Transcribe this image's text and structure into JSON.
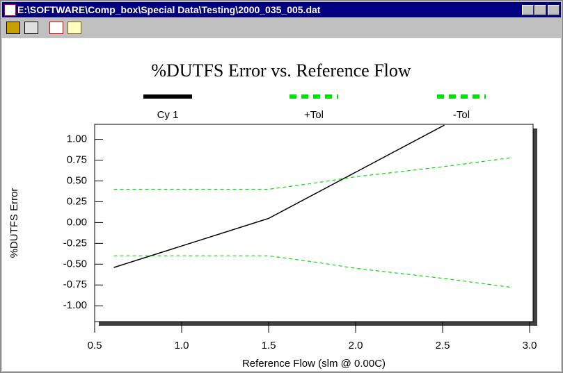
{
  "window": {
    "title": "E:\\SOFTWARE\\Comp_box\\Special Data\\Testing\\2000_035_005.dat"
  },
  "chart_data": {
    "type": "line",
    "title": "%DUTFS Error vs. Reference Flow",
    "x_label": "Reference Flow (slm @ 0.00C)",
    "y_label": "%DUTFS Error",
    "xlim": [
      0.5,
      3.02
    ],
    "ylim": [
      -1.19,
      1.18
    ],
    "xticks": [
      {
        "value": 0.5,
        "label": "0.5"
      },
      {
        "value": 1,
        "label": "1.0"
      },
      {
        "value": 1.5,
        "label": "1.5"
      },
      {
        "value": 2,
        "label": "2.0"
      },
      {
        "value": 2.5,
        "label": "2.5"
      },
      {
        "value": 3,
        "label": "3.0"
      }
    ],
    "yticks": [
      {
        "value": 1,
        "label": "1.00"
      },
      {
        "value": 0.75,
        "label": "0.75"
      },
      {
        "value": 0.5,
        "label": "0.50"
      },
      {
        "value": 0.25,
        "label": "0.25"
      },
      {
        "value": 0,
        "label": "0.00"
      },
      {
        "value": -0.25,
        "label": "-0.25"
      },
      {
        "value": -0.5,
        "label": "-0.50"
      },
      {
        "value": -0.75,
        "label": "-0.75"
      },
      {
        "value": -1,
        "label": "-1.00"
      }
    ],
    "grid": false,
    "series": [
      {
        "name": "Cy 1",
        "color": "#000000",
        "dash": "solid",
        "x": [
          0.61,
          1.5,
          2.51
        ],
        "values": [
          -0.54,
          0.05,
          1.17
        ]
      },
      {
        "name": "+Tol",
        "color": "#00e000",
        "dash": "dashed",
        "x": [
          0.61,
          1.5,
          1.75,
          2.0,
          2.5,
          2.9
        ],
        "values": [
          0.4,
          0.4,
          0.47,
          0.55,
          0.67,
          0.78
        ]
      },
      {
        "name": "-Tol",
        "color": "#00e000",
        "dash": "dashed",
        "x": [
          0.61,
          1.5,
          1.75,
          2.0,
          2.5,
          2.9
        ],
        "values": [
          -0.4,
          -0.4,
          -0.47,
          -0.55,
          -0.67,
          -0.78
        ]
      }
    ]
  }
}
